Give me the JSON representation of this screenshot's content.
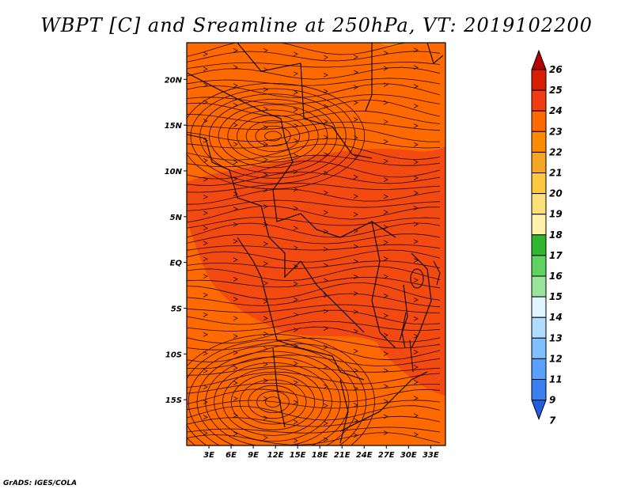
{
  "title": "WBPT [C] and Sreamline at 250hPa, VT: 2019102200",
  "credit": "GrADS: IGES/COLA",
  "map": {
    "lon_min": 0,
    "lon_max": 35,
    "lat_min": -20,
    "lat_max": 24,
    "lon_ticks": [
      "3E",
      "6E",
      "9E",
      "12E",
      "15E",
      "18E",
      "21E",
      "24E",
      "27E",
      "30E",
      "33E"
    ],
    "lon_values": [
      3,
      6,
      9,
      12,
      15,
      18,
      21,
      24,
      27,
      30,
      33
    ],
    "lat_ticks": [
      "20N",
      "15N",
      "10N",
      "5N",
      "EQ",
      "5S",
      "10S",
      "15S"
    ],
    "lat_values": [
      20,
      15,
      10,
      5,
      0,
      -5,
      -10,
      -15
    ],
    "base_fill": "#ff6a00",
    "warm_fill": "#f24a10"
  },
  "colorbar": {
    "labels": [
      "26",
      "25",
      "24",
      "23",
      "22",
      "21",
      "20",
      "19",
      "18",
      "17",
      "16",
      "15",
      "14",
      "13",
      "12",
      "11",
      "9",
      "7"
    ],
    "colors": [
      "#b30000",
      "#d81e00",
      "#f03c10",
      "#ff6a00",
      "#ff8c00",
      "#f5a623",
      "#fbc840",
      "#fde07a",
      "#fff1a8",
      "#2fb82f",
      "#5fd35f",
      "#9be59b",
      "#e0f5ff",
      "#b0dcff",
      "#80c0ff",
      "#5aa0ff",
      "#3a80f0",
      "#2060e0"
    ]
  }
}
